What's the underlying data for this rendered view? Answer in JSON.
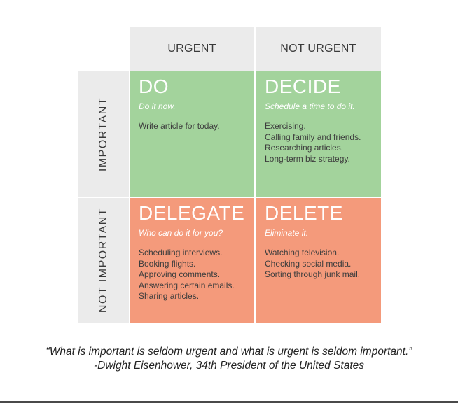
{
  "headers": {
    "col_urgent": "URGENT",
    "col_not_urgent": "NOT URGENT",
    "row_important": "IMPORTANT",
    "row_not_important": "NOT IMPORTANT"
  },
  "quadrants": {
    "do": {
      "title": "DO",
      "subtitle": "Do it now.",
      "items": [
        "Write article for today."
      ],
      "color": "#a3d39c"
    },
    "decide": {
      "title": "DECIDE",
      "subtitle": "Schedule a time to do it.",
      "items": [
        "Exercising.",
        "Calling family and friends.",
        "Researching articles.",
        "Long-term biz strategy."
      ],
      "color": "#a3d39c"
    },
    "delegate": {
      "title": "DELEGATE",
      "subtitle": "Who can do it for you?",
      "items": [
        "Scheduling interviews.",
        "Booking flights.",
        "Approving comments.",
        "Answering certain emails.",
        "Sharing articles."
      ],
      "color": "#f49a7b"
    },
    "delete": {
      "title": "DELETE",
      "subtitle": "Eliminate it.",
      "items": [
        "Watching television.",
        "Checking social media.",
        "Sorting through junk mail."
      ],
      "color": "#f49a7b"
    }
  },
  "quote": {
    "text": "“What is important is seldom urgent and what is urgent is seldom important.”",
    "attribution": "-Dwight Eisenhower, 34th President of the United States"
  }
}
